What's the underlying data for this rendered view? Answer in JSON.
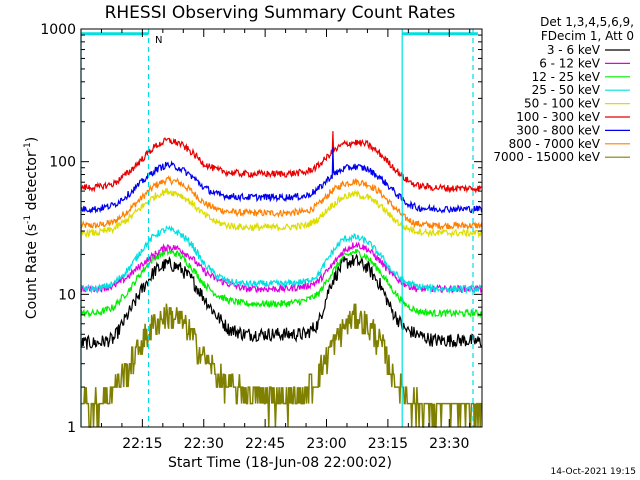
{
  "chart_data": {
    "type": "line",
    "title": "RHESSI Observing Summary Count Rates",
    "xlabel": "Start Time (18-Jun-08 22:00:02)",
    "ylabel": "Count Rate (s",
    "ylabel_sup1": "-1",
    "ylabel_mid": " detector",
    "ylabel_sup2": "-1",
    "ylabel_end": ")",
    "yscale": "log",
    "xlim": [
      0,
      98
    ],
    "ylim": [
      1,
      1000
    ],
    "x_unit": "minutes after 22:00:02",
    "x_ticks": [
      15,
      30,
      45,
      60,
      75,
      90
    ],
    "x_tick_labels": [
      "22:15",
      "22:30",
      "22:45",
      "23:00",
      "23:15",
      "23:30"
    ],
    "y_ticks": [
      1,
      10,
      100,
      1000
    ],
    "y_tick_labels": [
      "1",
      "10",
      "100",
      "1000"
    ],
    "legend_header": [
      "Det 1,3,4,5,6,9,",
      "FDecim 1, Att 0"
    ],
    "series": [
      {
        "name": "3 - 6 keV",
        "color": "#000000",
        "x": [
          0,
          4,
          8,
          12,
          15,
          18,
          21,
          24,
          27,
          30,
          33,
          36,
          40,
          45,
          50,
          55,
          58,
          61,
          64,
          67,
          70,
          73,
          76,
          79,
          82,
          86,
          90,
          94,
          97
        ],
        "values": [
          4.3,
          4.3,
          4.6,
          7.5,
          11,
          15,
          17,
          16,
          13,
          9.5,
          7,
          5.5,
          5,
          5,
          5,
          5,
          6,
          12,
          17,
          18,
          16,
          12,
          7.5,
          5.5,
          5,
          4.5,
          4.5,
          4.5,
          4.4
        ]
      },
      {
        "name": "6 - 12 keV",
        "color": "#e000e0",
        "x": [
          0,
          4,
          8,
          12,
          15,
          18,
          21,
          24,
          27,
          30,
          33,
          36,
          40,
          45,
          50,
          55,
          58,
          61,
          64,
          67,
          70,
          73,
          76,
          79,
          82,
          86,
          90,
          94,
          97
        ],
        "values": [
          11,
          11,
          11.5,
          14,
          17,
          20,
          23,
          22,
          19,
          15,
          13,
          12,
          11,
          11,
          11,
          11.5,
          12.5,
          16,
          21,
          24,
          22,
          18,
          14,
          12,
          11,
          11,
          11,
          11,
          11
        ]
      },
      {
        "name": "12 - 25 keV",
        "color": "#00ee00",
        "x": [
          0,
          4,
          8,
          12,
          15,
          18,
          21,
          24,
          27,
          30,
          33,
          36,
          40,
          45,
          50,
          55,
          58,
          61,
          64,
          67,
          70,
          73,
          76,
          79,
          82,
          86,
          90,
          94,
          97
        ],
        "values": [
          7.2,
          7.2,
          8,
          11,
          15,
          19,
          21,
          20,
          16,
          12,
          10,
          9,
          8.5,
          8.5,
          8.5,
          9,
          10,
          14,
          19,
          21,
          19,
          15,
          11,
          8.5,
          7.5,
          7.2,
          7.2,
          7.2,
          7.2
        ]
      },
      {
        "name": "25 - 50 keV",
        "color": "#00e0e0",
        "x": [
          0,
          4,
          8,
          12,
          15,
          18,
          21,
          24,
          27,
          30,
          33,
          36,
          40,
          45,
          50,
          55,
          58,
          61,
          64,
          67,
          70,
          73,
          76,
          79,
          82,
          86,
          90,
          94,
          97
        ],
        "values": [
          11,
          11,
          12,
          16,
          22,
          28,
          31,
          29,
          24,
          17,
          14,
          12.5,
          12,
          12,
          12,
          12.5,
          14,
          20,
          26,
          27,
          25,
          20,
          15,
          12.5,
          11.5,
          11,
          11,
          11,
          11
        ]
      },
      {
        "name": "50 - 100 keV",
        "color": "#dddd00",
        "x": [
          0,
          4,
          8,
          12,
          15,
          18,
          21,
          24,
          27,
          30,
          33,
          36,
          40,
          45,
          50,
          55,
          58,
          61,
          64,
          67,
          70,
          73,
          76,
          79,
          82,
          86,
          90,
          94,
          97
        ],
        "values": [
          29,
          29,
          31,
          38,
          46,
          55,
          60,
          57,
          49,
          40,
          35,
          33,
          32,
          32,
          32,
          33,
          37,
          46,
          54,
          57,
          54,
          47,
          38,
          32,
          30,
          29,
          29,
          29,
          29
        ]
      },
      {
        "name": "100 - 300 keV",
        "color": "#e80000",
        "x": [
          0,
          4,
          8,
          12,
          15,
          18,
          21,
          24,
          27,
          30,
          33,
          36,
          40,
          45,
          50,
          55,
          58,
          61,
          64,
          67,
          70,
          73,
          76,
          79,
          82,
          86,
          90,
          94,
          97
        ],
        "values": [
          64,
          64,
          68,
          85,
          105,
          130,
          145,
          138,
          118,
          97,
          87,
          83,
          81,
          81,
          81,
          83,
          93,
          115,
          135,
          140,
          135,
          115,
          93,
          75,
          66,
          64,
          63,
          63,
          63
        ]
      },
      {
        "name": "300 - 800 keV",
        "color": "#0000ee",
        "x": [
          0,
          4,
          8,
          12,
          15,
          18,
          21,
          24,
          27,
          30,
          33,
          36,
          40,
          45,
          50,
          55,
          58,
          61,
          64,
          67,
          70,
          73,
          76,
          79,
          82,
          86,
          90,
          94,
          97
        ],
        "values": [
          44,
          44,
          47,
          58,
          71,
          86,
          95,
          90,
          78,
          64,
          57,
          55,
          54,
          54,
          54,
          55,
          62,
          77,
          88,
          92,
          88,
          76,
          62,
          50,
          45,
          44,
          44,
          44,
          44
        ]
      },
      {
        "name": "800 - 7000 keV",
        "color": "#ff8000",
        "x": [
          0,
          4,
          8,
          12,
          15,
          18,
          21,
          24,
          27,
          30,
          33,
          36,
          40,
          45,
          50,
          55,
          58,
          61,
          64,
          67,
          70,
          73,
          76,
          79,
          82,
          86,
          90,
          94,
          97
        ],
        "values": [
          33,
          33,
          35,
          44,
          54,
          66,
          73,
          70,
          60,
          49,
          44,
          42,
          41,
          41,
          41,
          42,
          47,
          59,
          68,
          71,
          68,
          59,
          47,
          38,
          34,
          33,
          33,
          33,
          33
        ]
      },
      {
        "name": "7000 - 15000 keV",
        "color": "#808000",
        "x": [
          0,
          4,
          8,
          12,
          15,
          18,
          21,
          24,
          27,
          30,
          33,
          36,
          40,
          45,
          50,
          55,
          58,
          61,
          64,
          67,
          70,
          73,
          76,
          79,
          82,
          86,
          90,
          94,
          97
        ],
        "values": [
          1.5,
          1.5,
          2,
          3,
          4.5,
          6,
          7,
          6.5,
          5,
          3.5,
          2.5,
          2,
          1.8,
          1.6,
          1.6,
          1.8,
          2.5,
          4,
          5.5,
          7,
          6,
          4.5,
          2.5,
          1.8,
          1.5,
          1.4,
          1.4,
          1.4,
          1.4
        ]
      }
    ],
    "spike": {
      "x": 61.5,
      "series_values": {
        "100 - 300 keV": 170,
        "300 - 800 keV": 128
      }
    },
    "status_bar": {
      "level": 920,
      "color": "#00e0e0",
      "segments": [
        [
          0,
          16.5
        ],
        [
          78.5,
          97
        ]
      ],
      "label": "N",
      "label_x": 18.5
    },
    "dashed_markers": {
      "color": "#00e0e0",
      "x": [
        16.5,
        95.8
      ]
    },
    "solid_markers": {
      "color": "#00e0e0",
      "x": [
        0,
        78.5
      ]
    }
  },
  "footer": {
    "date_stamp": "14-Oct-2021 19:15"
  }
}
